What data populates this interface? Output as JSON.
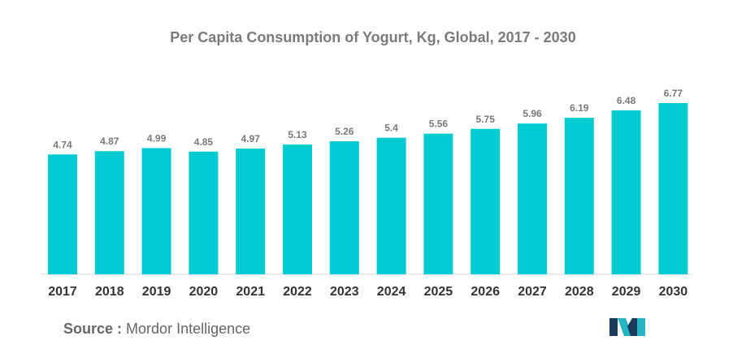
{
  "chart_data": {
    "type": "bar",
    "title": "Per Capita Consumption of Yogurt, Kg, Global, 2017 - 2030",
    "xlabel": "",
    "ylabel": "",
    "categories": [
      "2017",
      "2018",
      "2019",
      "2020",
      "2021",
      "2022",
      "2023",
      "2024",
      "2025",
      "2026",
      "2027",
      "2028",
      "2029",
      "2030"
    ],
    "values": [
      4.74,
      4.87,
      4.99,
      4.85,
      4.97,
      5.13,
      5.26,
      5.4,
      5.56,
      5.75,
      5.96,
      6.19,
      6.48,
      6.77
    ],
    "value_labels": [
      "4.74",
      "4.87",
      "4.99",
      "4.85",
      "4.97",
      "5.13",
      "5.26",
      "5.4",
      "5.56",
      "5.75",
      "5.96",
      "6.19",
      "6.48",
      "6.77"
    ],
    "ylim": [
      0,
      6.77
    ],
    "grid": false,
    "legend": "none",
    "bar_color": "#00cbd0"
  },
  "source": {
    "label": "Source :",
    "text": "Mordor Intelligence"
  },
  "logo": {
    "icon": "mordor-intelligence-logo-icon",
    "colors": [
      "#1b3a5c",
      "#27b5c4"
    ]
  }
}
